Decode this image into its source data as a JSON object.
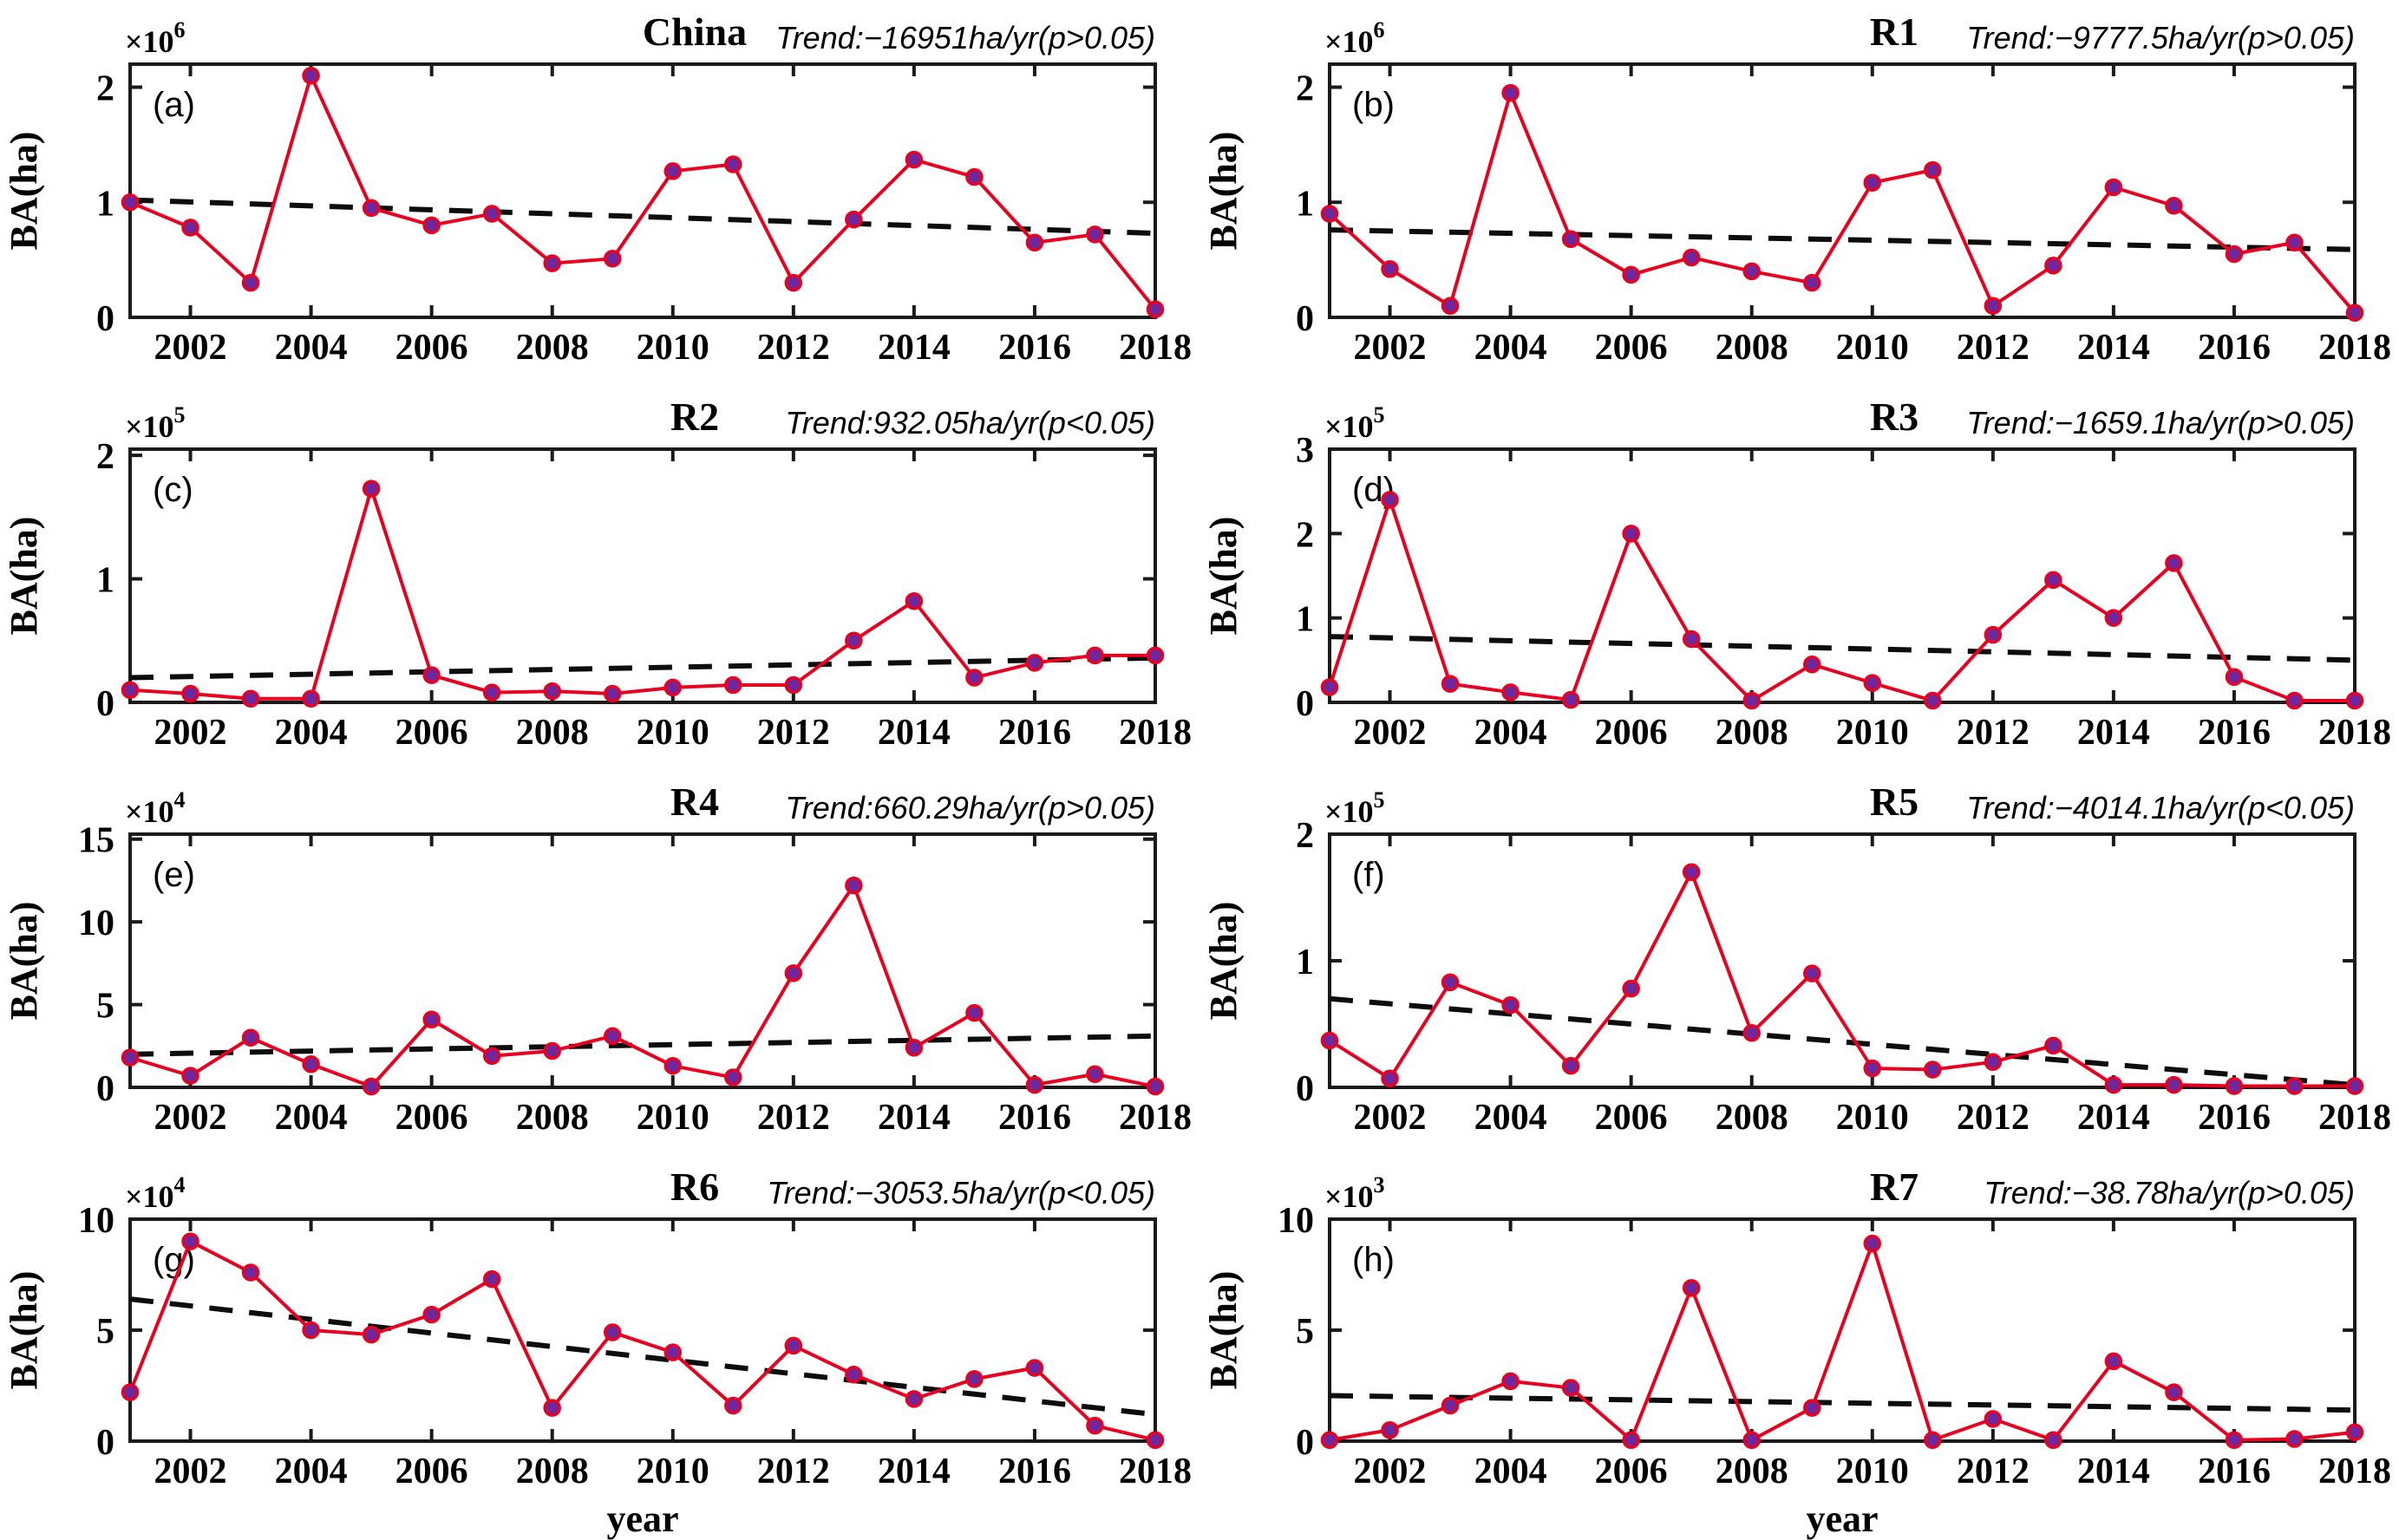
{
  "figure": {
    "ylabel": "BA(ha)",
    "xlabel": "year",
    "years": [
      2001,
      2002,
      2003,
      2004,
      2005,
      2006,
      2007,
      2008,
      2009,
      2010,
      2011,
      2012,
      2013,
      2014,
      2015,
      2016,
      2017,
      2018
    ],
    "xticks": [
      2002,
      2004,
      2006,
      2008,
      2010,
      2012,
      2014,
      2016,
      2018
    ],
    "colors": {
      "line": "#e8001f",
      "marker_fill": "#6d28a0",
      "marker_edge": "#e8001f",
      "trend_line": "#0d0d0d",
      "axis": "#1a1a1a",
      "text": "#000000"
    }
  },
  "chart_data": [
    {
      "type": "line",
      "panel": "(a)",
      "title": "China",
      "trend_label": "Trend:−16951ha/yr(p>0.05)",
      "exponent_base": "×10",
      "exponent": "6",
      "values": [
        1.0,
        0.78,
        0.3,
        2.1,
        0.95,
        0.8,
        0.9,
        0.47,
        0.51,
        1.27,
        1.33,
        0.3,
        0.85,
        1.37,
        1.22,
        0.65,
        0.72,
        0.07
      ],
      "trend": {
        "start": 1.02,
        "end": 0.73
      },
      "ylim": [
        0,
        2.2
      ],
      "yticks": [
        0,
        1,
        2
      ],
      "xlabel": ""
    },
    {
      "type": "line",
      "panel": "(b)",
      "title": "R1",
      "trend_label": "Trend:−9777.5ha/yr(p>0.05)",
      "exponent_base": "×10",
      "exponent": "6",
      "values": [
        0.9,
        0.42,
        0.1,
        1.95,
        0.68,
        0.37,
        0.52,
        0.4,
        0.3,
        1.17,
        1.28,
        0.1,
        0.45,
        1.13,
        0.97,
        0.55,
        0.65,
        0.04
      ],
      "trend": {
        "start": 0.76,
        "end": 0.59
      },
      "ylim": [
        0,
        2.2
      ],
      "yticks": [
        0,
        1,
        2
      ],
      "xlabel": ""
    },
    {
      "type": "line",
      "panel": "(c)",
      "title": "R2",
      "trend_label": "Trend:932.05ha/yr(p<0.05)",
      "exponent_base": "×10",
      "exponent": "5",
      "values": [
        0.1,
        0.07,
        0.03,
        0.03,
        1.73,
        0.22,
        0.08,
        0.09,
        0.07,
        0.12,
        0.14,
        0.14,
        0.5,
        0.82,
        0.2,
        0.32,
        0.38,
        0.38
      ],
      "trend": {
        "start": 0.2,
        "end": 0.36
      },
      "ylim": [
        0,
        2.05
      ],
      "yticks": [
        0,
        1,
        2
      ],
      "xlabel": ""
    },
    {
      "type": "line",
      "panel": "(d)",
      "title": "R3",
      "trend_label": "Trend:−1659.1ha/yr(p>0.05)",
      "exponent_base": "×10",
      "exponent": "5",
      "values": [
        0.18,
        2.4,
        0.22,
        0.12,
        0.03,
        2.0,
        0.75,
        0.02,
        0.45,
        0.23,
        0.02,
        0.8,
        1.45,
        1.0,
        1.65,
        0.3,
        0.02,
        0.02
      ],
      "trend": {
        "start": 0.78,
        "end": 0.5
      },
      "ylim": [
        0,
        3.0
      ],
      "yticks": [
        0,
        1,
        2,
        3
      ],
      "xlabel": ""
    },
    {
      "type": "line",
      "panel": "(e)",
      "title": "R4",
      "trend_label": "Trend:660.29ha/yr(p>0.05)",
      "exponent_base": "×10",
      "exponent": "4",
      "values": [
        1.8,
        0.7,
        3.0,
        1.4,
        0.05,
        4.1,
        1.9,
        2.2,
        3.1,
        1.3,
        0.6,
        6.9,
        12.2,
        2.4,
        4.5,
        0.15,
        0.8,
        0.05
      ],
      "trend": {
        "start": 2.0,
        "end": 3.1
      },
      "ylim": [
        0,
        15.3
      ],
      "yticks": [
        0,
        5,
        10,
        15
      ],
      "xlabel": ""
    },
    {
      "type": "line",
      "panel": "(f)",
      "title": "R5",
      "trend_label": "Trend:−4014.1ha/yr(p<0.05)",
      "exponent_base": "×10",
      "exponent": "5",
      "values": [
        0.37,
        0.07,
        0.83,
        0.65,
        0.17,
        0.78,
        1.7,
        0.43,
        0.9,
        0.15,
        0.14,
        0.2,
        0.33,
        0.02,
        0.02,
        0.01,
        0.01,
        0.01
      ],
      "trend": {
        "start": 0.7,
        "end": 0.02
      },
      "ylim": [
        0,
        2.0
      ],
      "yticks": [
        0,
        1,
        2
      ],
      "xlabel": ""
    },
    {
      "type": "line",
      "panel": "(g)",
      "title": "R6",
      "trend_label": "Trend:−3053.5ha/yr(p<0.05)",
      "exponent_base": "×10",
      "exponent": "4",
      "values": [
        2.2,
        9.0,
        7.6,
        5.0,
        4.8,
        5.7,
        7.3,
        1.5,
        4.9,
        4.0,
        1.6,
        4.3,
        3.0,
        1.9,
        2.8,
        3.3,
        0.7,
        0.05
      ],
      "trend": {
        "start": 6.4,
        "end": 1.2
      },
      "ylim": [
        0,
        10
      ],
      "yticks": [
        0,
        5,
        10
      ],
      "xlabel": "year"
    },
    {
      "type": "line",
      "panel": "(h)",
      "title": "R7",
      "trend_label": "Trend:−38.78ha/yr(p>0.05)",
      "exponent_base": "×10",
      "exponent": "3",
      "values": [
        0.05,
        0.5,
        1.6,
        2.7,
        2.4,
        0.05,
        6.9,
        0.05,
        1.5,
        8.9,
        0.05,
        1.0,
        0.05,
        3.6,
        2.2,
        0.05,
        0.1,
        0.4
      ],
      "trend": {
        "start": 2.05,
        "end": 1.4
      },
      "ylim": [
        0,
        10
      ],
      "yticks": [
        0,
        5,
        10
      ],
      "xlabel": "year"
    }
  ]
}
